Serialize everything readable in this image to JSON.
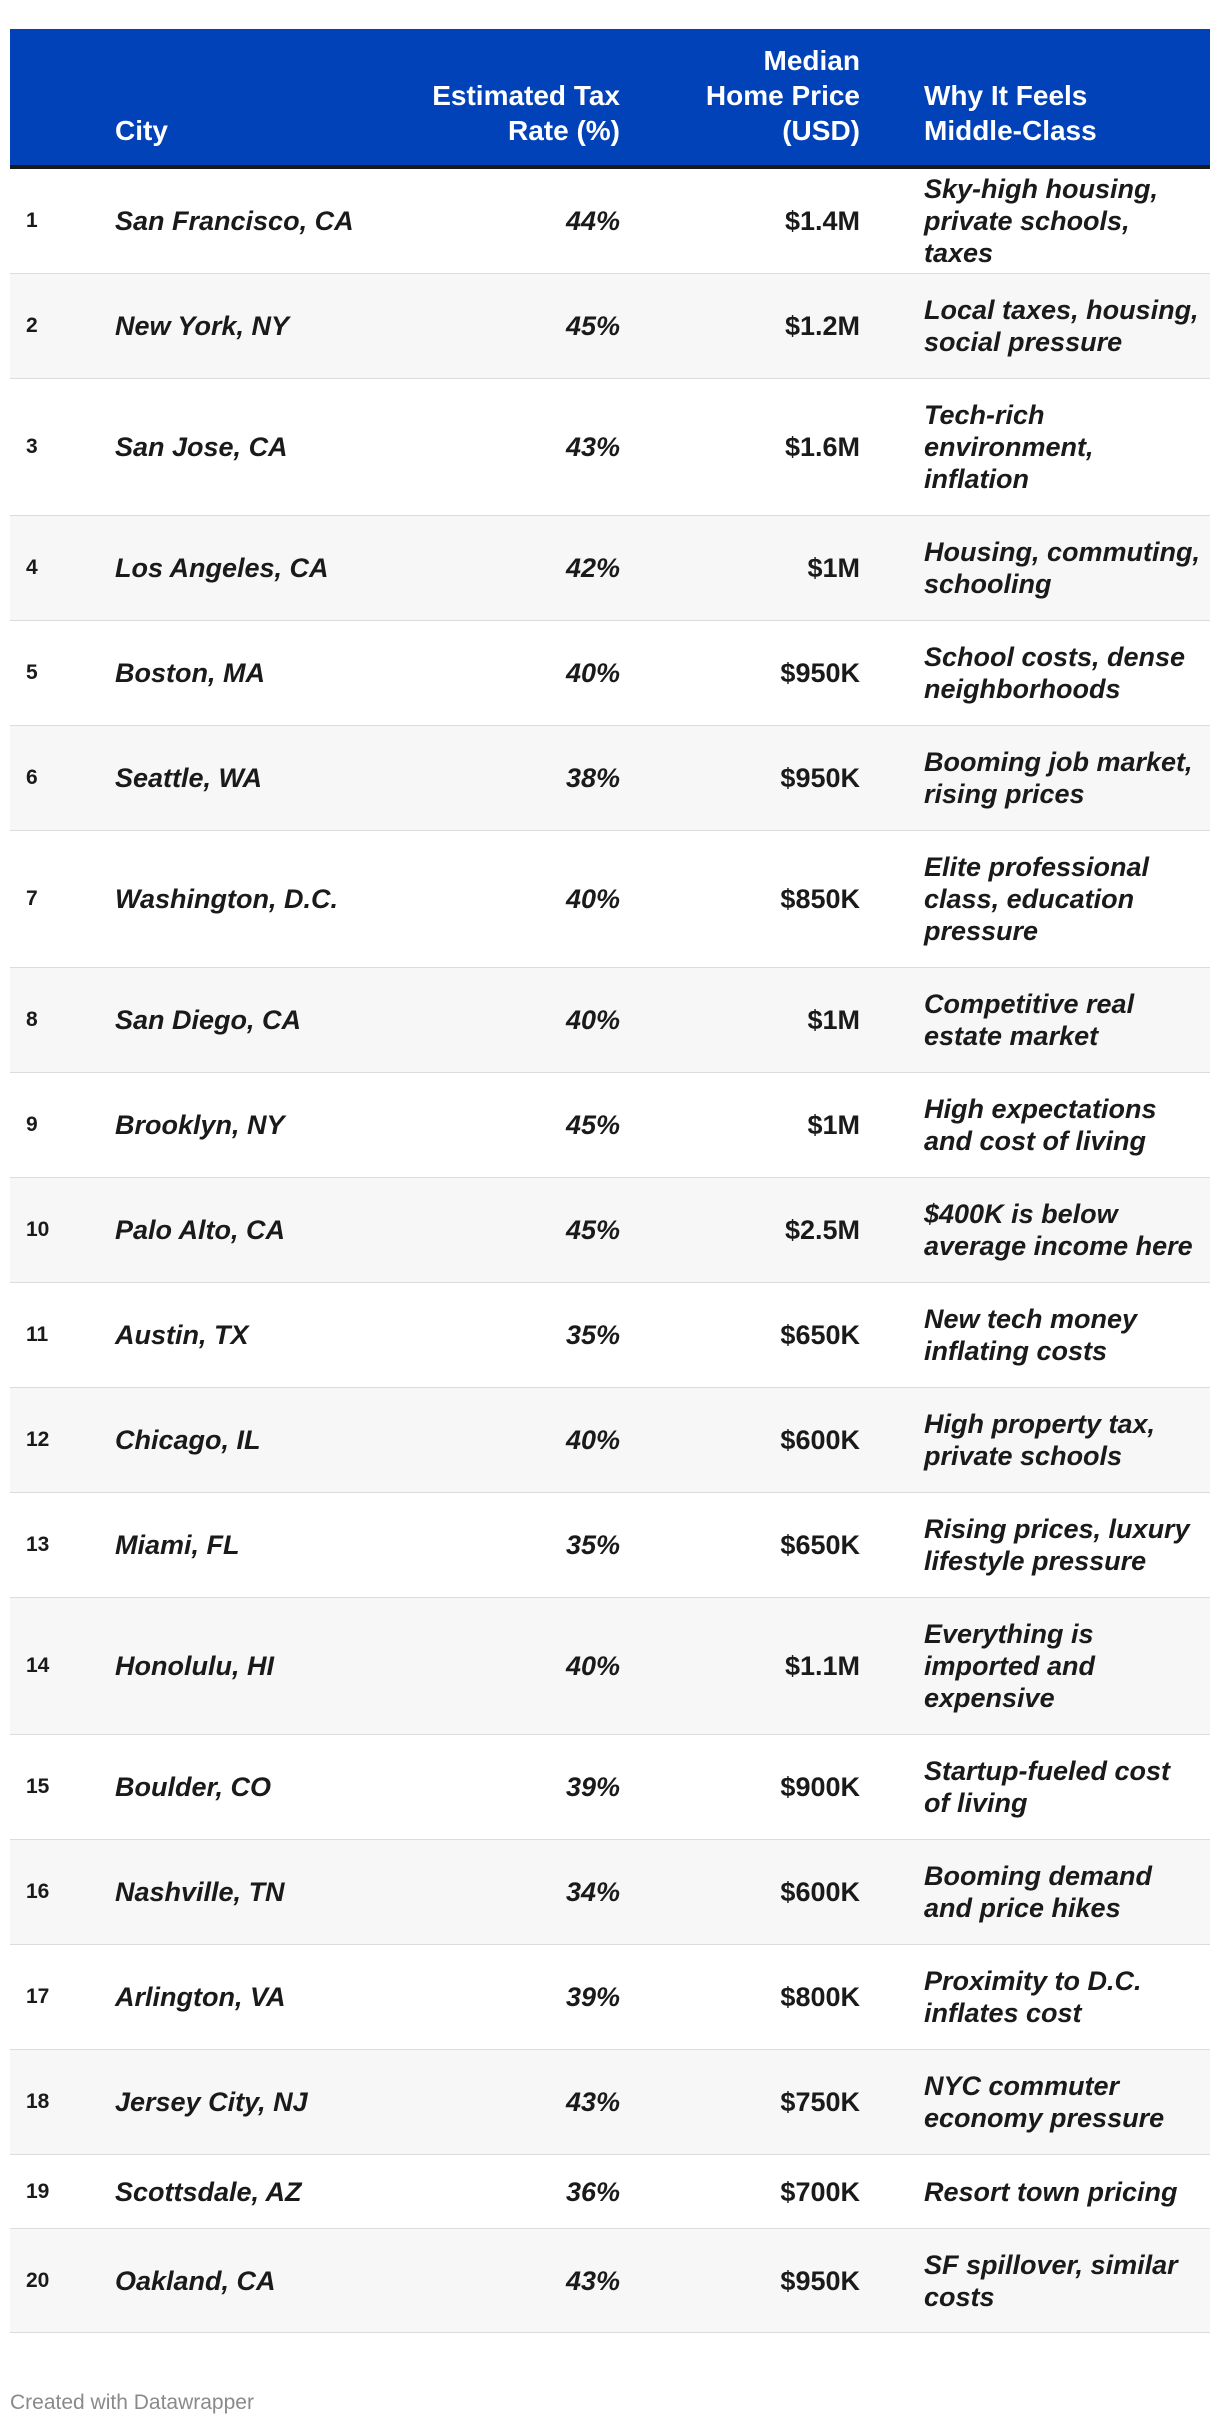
{
  "chart_data": {
    "type": "table",
    "columns": [
      "",
      "City",
      "Estimated Tax Rate (%)",
      "Median Home Price (USD)",
      "Why It Feels Middle-Class"
    ],
    "header_lines": {
      "rank": "",
      "city": "City",
      "tax": [
        "Estimated Tax",
        "Rate (%)"
      ],
      "price": [
        "Median",
        "Home Price",
        "(USD)"
      ],
      "why": [
        "Why It Feels",
        "Middle-Class"
      ]
    },
    "rows": [
      {
        "rank": "1",
        "city": "San Francisco, CA",
        "tax": "44%",
        "price": "$1.4M",
        "why": "Sky-high housing, private schools, taxes"
      },
      {
        "rank": "2",
        "city": "New York, NY",
        "tax": "45%",
        "price": "$1.2M",
        "why": "Local taxes, housing, social pressure"
      },
      {
        "rank": "3",
        "city": "San Jose, CA",
        "tax": "43%",
        "price": "$1.6M",
        "why": "Tech-rich environment, inflation"
      },
      {
        "rank": "4",
        "city": "Los Angeles, CA",
        "tax": "42%",
        "price": "$1M",
        "why": "Housing, commuting, schooling"
      },
      {
        "rank": "5",
        "city": "Boston, MA",
        "tax": "40%",
        "price": "$950K",
        "why": "School costs, dense neighborhoods"
      },
      {
        "rank": "6",
        "city": "Seattle, WA",
        "tax": "38%",
        "price": "$950K",
        "why": "Booming job market, rising prices"
      },
      {
        "rank": "7",
        "city": "Washington, D.C.",
        "tax": "40%",
        "price": "$850K",
        "why": "Elite professional class, education pressure"
      },
      {
        "rank": "8",
        "city": "San Diego, CA",
        "tax": "40%",
        "price": "$1M",
        "why": "Competitive real estate market"
      },
      {
        "rank": "9",
        "city": "Brooklyn, NY",
        "tax": "45%",
        "price": "$1M",
        "why": "High expectations and cost of living"
      },
      {
        "rank": "10",
        "city": "Palo Alto, CA",
        "tax": "45%",
        "price": "$2.5M",
        "why": "$400K is below average income here"
      },
      {
        "rank": "11",
        "city": "Austin, TX",
        "tax": "35%",
        "price": "$650K",
        "why": "New tech money inflating costs"
      },
      {
        "rank": "12",
        "city": "Chicago, IL",
        "tax": "40%",
        "price": "$600K",
        "why": "High property tax, private schools"
      },
      {
        "rank": "13",
        "city": "Miami, FL",
        "tax": "35%",
        "price": "$650K",
        "why": "Rising prices, luxury lifestyle pressure"
      },
      {
        "rank": "14",
        "city": "Honolulu, HI",
        "tax": "40%",
        "price": "$1.1M",
        "why": "Everything is imported and expensive"
      },
      {
        "rank": "15",
        "city": "Boulder, CO",
        "tax": "39%",
        "price": "$900K",
        "why": "Startup-fueled cost of living"
      },
      {
        "rank": "16",
        "city": "Nashville, TN",
        "tax": "34%",
        "price": "$600K",
        "why": "Booming demand and price hikes"
      },
      {
        "rank": "17",
        "city": "Arlington, VA",
        "tax": "39%",
        "price": "$800K",
        "why": "Proximity to D.C. inflates cost"
      },
      {
        "rank": "18",
        "city": "Jersey City, NJ",
        "tax": "43%",
        "price": "$750K",
        "why": "NYC commuter economy pressure"
      },
      {
        "rank": "19",
        "city": "Scottsdale, AZ",
        "tax": "36%",
        "price": "$700K",
        "why": "Resort town pricing"
      },
      {
        "rank": "20",
        "city": "Oakland, CA",
        "tax": "43%",
        "price": "$950K",
        "why": "SF spillover, similar costs"
      }
    ]
  },
  "footer": "Created with Datawrapper",
  "colors": {
    "header_bg": "#0142b8",
    "header_text": "#ffffff",
    "row_alt": "#f7f7f7",
    "footer_text": "#8a8a8a"
  }
}
